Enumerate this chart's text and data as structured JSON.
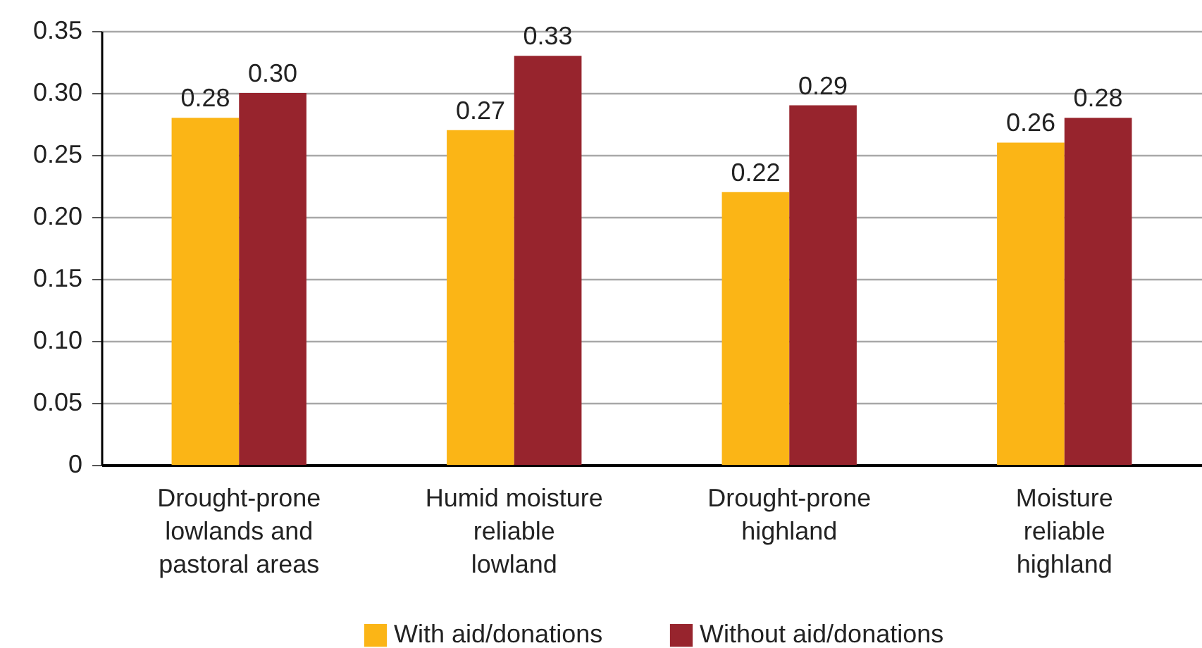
{
  "chart_data": {
    "type": "bar",
    "categories": [
      "Drought-prone lowlands and pastoral areas",
      "Humid moisture reliable lowland",
      "Drought-prone highland",
      "Moisture reliable highland"
    ],
    "series": [
      {
        "name": "With aid/donations",
        "color": "#fbb516",
        "values": [
          0.28,
          0.27,
          0.22,
          0.26
        ],
        "value_labels": [
          "0.28",
          "0.27",
          "0.22",
          "0.26"
        ]
      },
      {
        "name": "Without aid/donations",
        "color": "#97242d",
        "values": [
          0.3,
          0.33,
          0.29,
          0.28
        ],
        "value_labels": [
          "0.30",
          "0.33",
          "0.29",
          "0.28"
        ]
      }
    ],
    "ylim": [
      0,
      0.35
    ],
    "yticks": [
      0,
      0.05,
      {
        "value": 0.1,
        "label": "0.10"
      },
      0.15,
      {
        "value": 0.2,
        "label": "0.20"
      },
      0.25,
      {
        "value": 0.3,
        "label": "0.30"
      },
      0.35
    ],
    "grid": "y",
    "legend": "bottom"
  }
}
